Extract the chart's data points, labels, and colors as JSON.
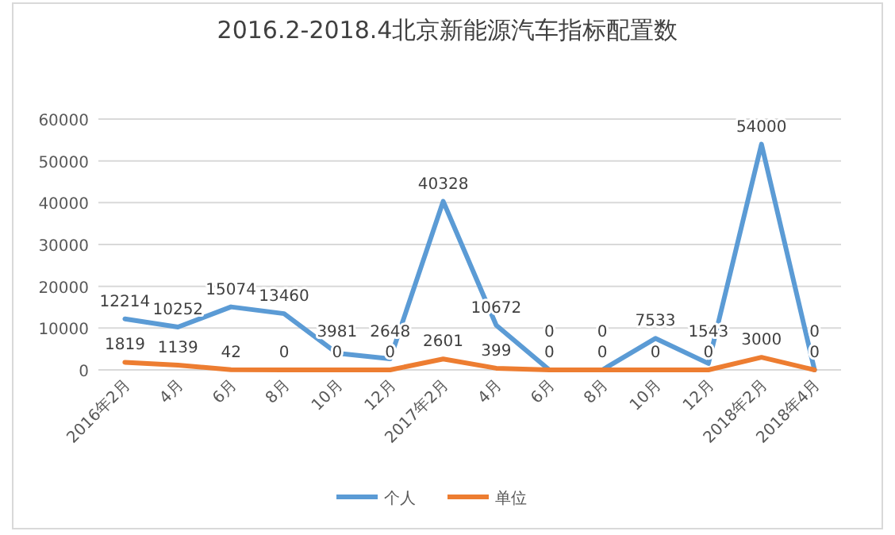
{
  "chart_data": {
    "type": "line",
    "title": "2016.2-2018.4北京新能源汽车指标配置数",
    "categories": [
      "2016年2月",
      "4月",
      "6月",
      "8月",
      "10月",
      "12月",
      "2017年2月",
      "4月",
      "6月",
      "8月",
      "10月",
      "12月",
      "2018年2月",
      "2018年4月"
    ],
    "series": [
      {
        "name": "个人",
        "color": "#5b9bd5",
        "values": [
          12214,
          10252,
          15074,
          13460,
          3981,
          2648,
          40328,
          10672,
          0,
          0,
          7533,
          1543,
          54000,
          0
        ]
      },
      {
        "name": "单位",
        "color": "#ed7d31",
        "values": [
          1819,
          1139,
          42,
          0,
          0,
          0,
          2601,
          399,
          0,
          0,
          0,
          0,
          3000,
          0
        ]
      }
    ],
    "ylim": [
      0,
      60000
    ],
    "yticks": [
      0,
      10000,
      20000,
      30000,
      40000,
      50000,
      60000
    ],
    "grid": "y",
    "legend": "bottom",
    "data_labels": true,
    "marker": "none",
    "line_style": "solid"
  }
}
